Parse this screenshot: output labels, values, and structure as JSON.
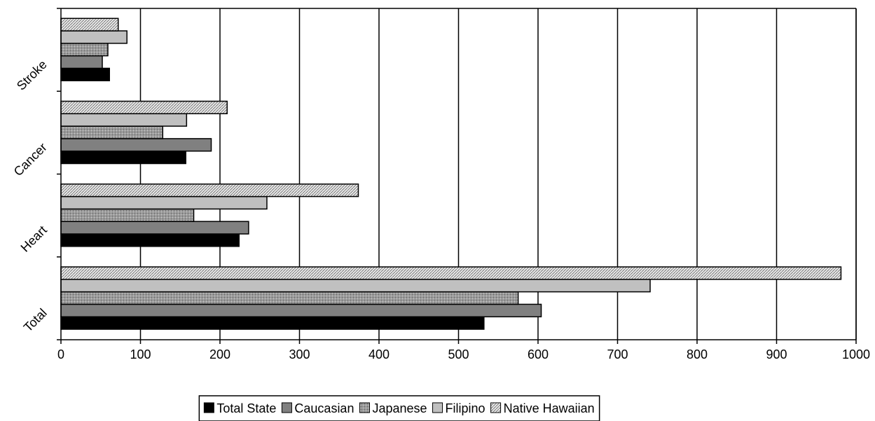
{
  "chart_data": {
    "type": "hbar",
    "categories": [
      "Total",
      "Heart",
      "Cancer",
      "Stroke"
    ],
    "series": [
      {
        "name": "Total State",
        "color": "#000000",
        "values": [
          532,
          224,
          157,
          61
        ]
      },
      {
        "name": "Caucasian",
        "color": "#808080",
        "values": [
          604,
          236,
          189,
          52
        ]
      },
      {
        "name": "Japanese",
        "color": "#9a9a9a",
        "pattern": "dots",
        "values": [
          575,
          167,
          128,
          59
        ]
      },
      {
        "name": "Filipino",
        "color": "#c0c0c0",
        "values": [
          741,
          259,
          158,
          83
        ]
      },
      {
        "name": "Native Hawaiian",
        "color": "#e8e8e8",
        "pattern": "hatch",
        "values": [
          981,
          374,
          209,
          72
        ]
      }
    ],
    "xlim": [
      0,
      1000
    ],
    "xticks": [
      0,
      100,
      200,
      300,
      400,
      500,
      600,
      700,
      800,
      900,
      1000
    ],
    "grid": true
  }
}
